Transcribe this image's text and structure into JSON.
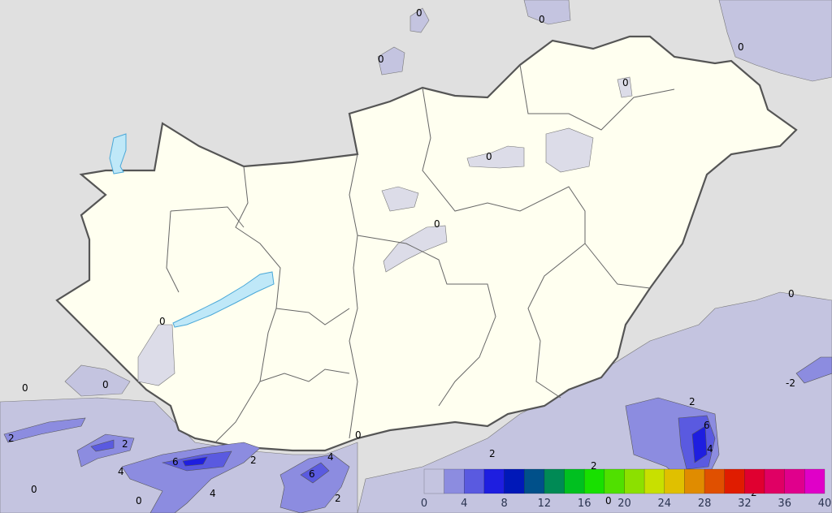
{
  "map": {
    "background_color": "#e0e0e0",
    "country_fill": "#fffff0",
    "low_fill": "#c4c4e0",
    "contour_labels": [
      {
        "text": "0",
        "near": "north-center"
      },
      {
        "text": "0",
        "near": "north"
      },
      {
        "text": "0",
        "near": "north-west-slovakia"
      },
      {
        "text": "0",
        "near": "north-east"
      },
      {
        "text": "0",
        "near": "north-east-hungary"
      },
      {
        "text": "0",
        "near": "north-hungary"
      },
      {
        "text": "0",
        "near": "center"
      },
      {
        "text": "0",
        "near": "balaton"
      },
      {
        "text": "0",
        "near": "east"
      },
      {
        "text": "0",
        "near": "south-west"
      },
      {
        "text": "0",
        "near": "west"
      },
      {
        "text": "2",
        "near": "south-west-edge"
      },
      {
        "text": "2",
        "near": "croatia"
      },
      {
        "text": "4",
        "near": "croatia"
      },
      {
        "text": "6",
        "near": "croatia"
      },
      {
        "text": "2",
        "near": "south-border"
      },
      {
        "text": "0",
        "near": "south-border"
      },
      {
        "text": "4",
        "near": "serbia"
      },
      {
        "text": "6",
        "near": "serbia"
      },
      {
        "text": "2",
        "near": "serbia"
      },
      {
        "text": "2",
        "near": "south-center"
      },
      {
        "text": "2",
        "near": "romania"
      },
      {
        "text": "6",
        "near": "romania"
      },
      {
        "text": "4",
        "near": "romania"
      },
      {
        "text": "-2",
        "near": "east"
      },
      {
        "text": "0",
        "near": "bottom-left"
      },
      {
        "text": "0",
        "near": "bottom"
      },
      {
        "text": "4",
        "near": "bottom"
      },
      {
        "text": "2",
        "near": "bottom"
      },
      {
        "text": "0",
        "near": "legend"
      },
      {
        "text": "2",
        "near": "legend-right"
      }
    ]
  },
  "legend": {
    "ticks": [
      "0",
      "4",
      "8",
      "12",
      "16",
      "20",
      "24",
      "28",
      "32",
      "36",
      "40"
    ],
    "colors": [
      "#c4c4e0",
      "#8c8ce0",
      "#5a5ae0",
      "#1e1ee0",
      "#0018b8",
      "#00508a",
      "#008a55",
      "#00c020",
      "#18e000",
      "#50e000",
      "#8ce000",
      "#c8e000",
      "#e0c000",
      "#e08c00",
      "#e05000",
      "#e01c00",
      "#e00030",
      "#e00064",
      "#e0008c",
      "#e000c8"
    ]
  }
}
